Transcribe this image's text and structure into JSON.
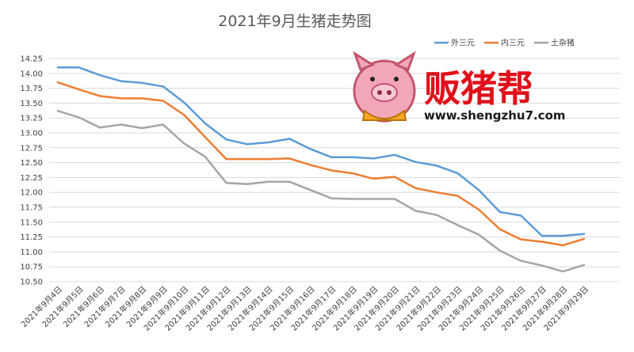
{
  "chart_data": {
    "type": "line",
    "title": "2021年9月生猪走势图",
    "xlabel": "",
    "ylabel": "",
    "ylim": [
      10.5,
      14.25
    ],
    "yticks": [
      10.5,
      10.75,
      11.0,
      11.25,
      11.5,
      11.75,
      12.0,
      12.25,
      12.5,
      12.75,
      13.0,
      13.25,
      13.5,
      13.75,
      14.0,
      14.25
    ],
    "ytick_labels": [
      "10.50",
      "10.75",
      "11.00",
      "11.25",
      "11.50",
      "11.75",
      "12.00",
      "12.25",
      "12.50",
      "12.75",
      "13.00",
      "13.25",
      "13.50",
      "13.75",
      "14.00",
      "14.25"
    ],
    "grid": true,
    "legend_position": "top-right",
    "categories": [
      "2021年9月4日",
      "2021年9月5日",
      "2021年9月6日",
      "2021年9月7日",
      "2021年9月8日",
      "2021年9月9日",
      "2021年9月10日",
      "2021年9月11日",
      "2021年9月12日",
      "2021年9月13日",
      "2021年9月14日",
      "2021年9月15日",
      "2021年9月16日",
      "2021年9月17日",
      "2021年9月18日",
      "2021年9月19日",
      "2021年9月20日",
      "2021年9月21日",
      "2021年9月22日",
      "2021年9月23日",
      "2021年9月24日",
      "2021年9月25日",
      "2021年9月26日",
      "2021年9月27日",
      "2021年9月28日",
      "2021年9月29日"
    ],
    "series": [
      {
        "name": "外三元",
        "color": "#5b9bd5",
        "values": [
          14.1,
          14.1,
          13.97,
          13.87,
          13.84,
          13.78,
          13.51,
          13.16,
          12.89,
          12.81,
          12.84,
          12.9,
          12.73,
          12.59,
          12.59,
          12.57,
          12.63,
          12.51,
          12.45,
          12.32,
          12.04,
          11.67,
          11.61,
          11.27,
          11.27,
          11.3
        ]
      },
      {
        "name": "内三元",
        "color": "#ed7d31",
        "values": [
          13.85,
          13.73,
          13.62,
          13.58,
          13.58,
          13.54,
          13.3,
          12.93,
          12.56,
          12.56,
          12.56,
          12.57,
          12.46,
          12.37,
          12.32,
          12.23,
          12.26,
          12.07,
          12.0,
          11.94,
          11.71,
          11.38,
          11.21,
          11.17,
          11.11,
          11.22
        ]
      },
      {
        "name": "土杂猪",
        "color": "#a5a5a5",
        "values": [
          13.37,
          13.26,
          13.09,
          13.14,
          13.08,
          13.14,
          12.82,
          12.6,
          12.16,
          12.14,
          12.18,
          12.18,
          12.04,
          11.9,
          11.89,
          11.89,
          11.89,
          11.69,
          11.62,
          11.45,
          11.29,
          11.02,
          10.85,
          10.77,
          10.67,
          10.78
        ]
      }
    ]
  },
  "watermark": {
    "brand": "贩猪帮",
    "url": "www.shengzhu7.com",
    "logo_icon": "pig-mascot-icon"
  }
}
